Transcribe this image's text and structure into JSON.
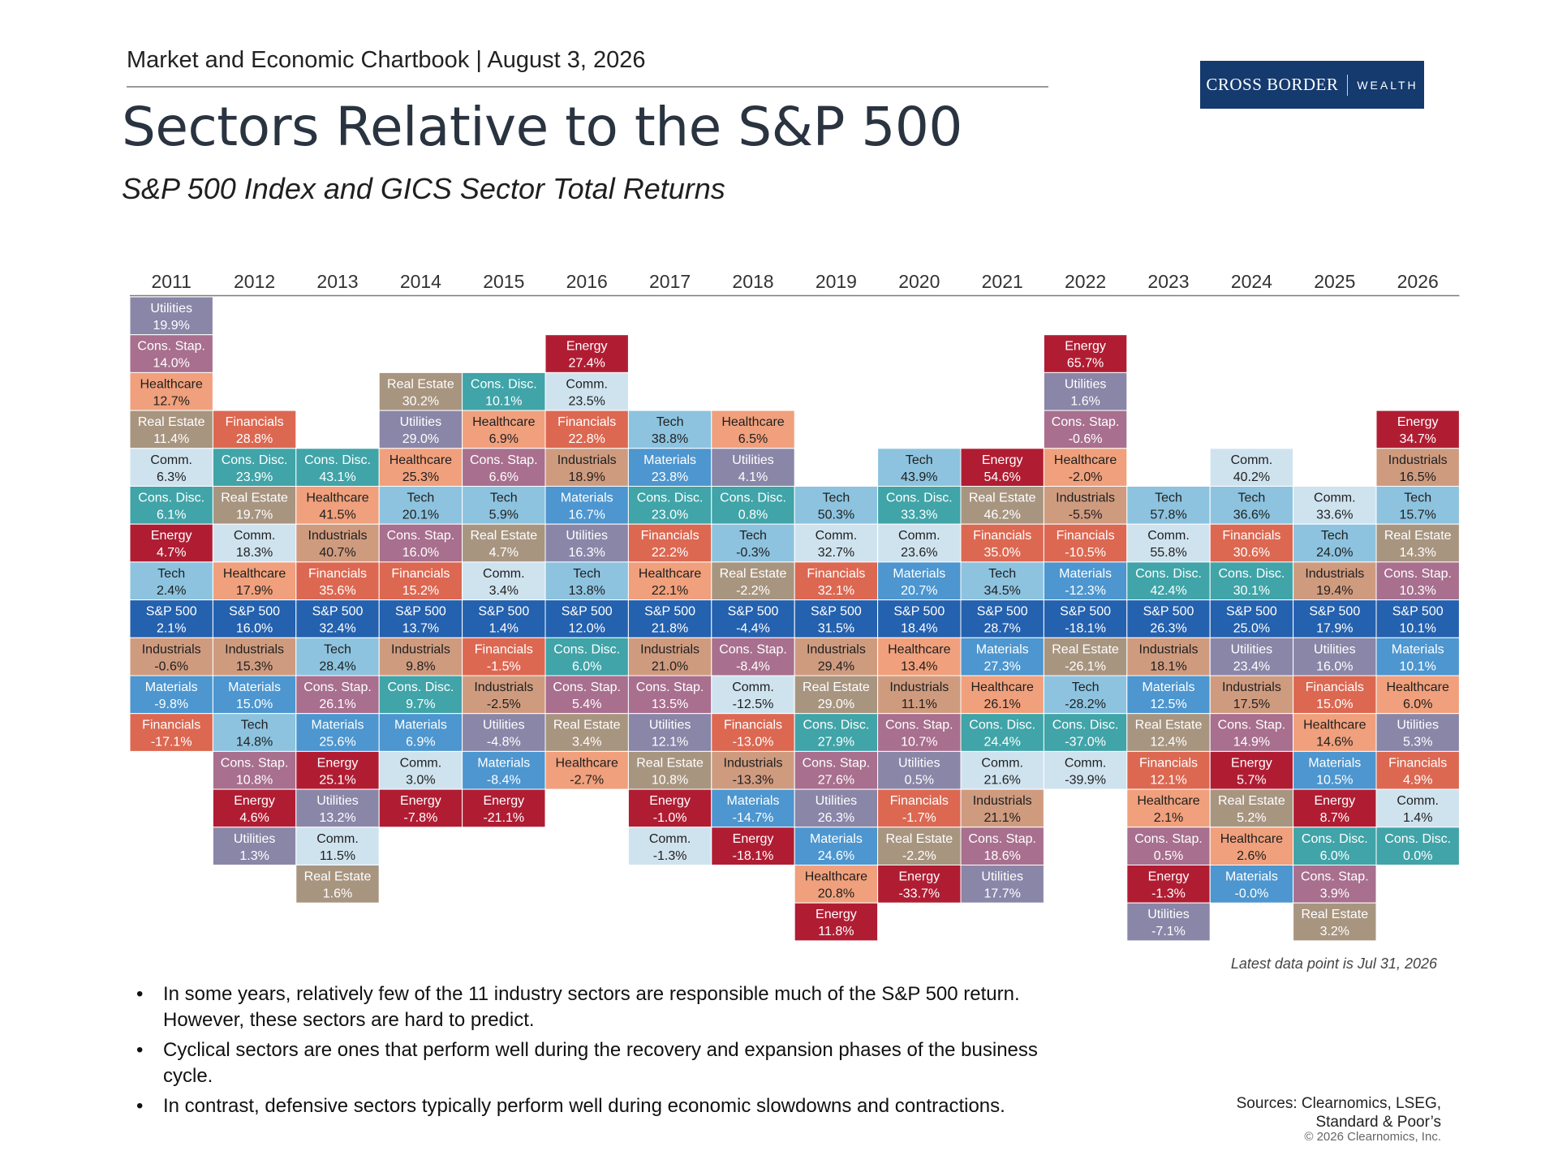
{
  "header": {
    "kicker": "Market and Economic Chartbook | August 3, 2026",
    "logo_primary": "CROSS BORDER",
    "logo_secondary": "WEALTH",
    "title": "Sectors Relative to the S&P 500",
    "subtitle": "S&P 500 Index and GICS Sector Total Returns"
  },
  "latest_note": "Latest data point is Jul 31, 2026",
  "bullets": [
    "In some years, relatively few of the 11 industry sectors are responsible much of the S&P 500 return. However, these sectors are hard to predict.",
    "Cyclical sectors are ones that perform well during the recovery and expansion phases of the business cycle.",
    "In contrast, defensive sectors typically perform well during economic slowdowns and contractions."
  ],
  "bullet_glyph": "•",
  "sources": [
    "Sources: Clearnomics, LSEG,",
    "Standard & Poor’s"
  ],
  "copyright": "© 2026 Clearnomics, Inc.",
  "colors": {
    "S&P 500": "#2461ae",
    "Utilities": "#8a86a8",
    "Cons. Stap.": "#a86f8e",
    "Healthcare": "#f0a07c",
    "Real Estate": "#a89580",
    "Comm.": "#cfe3ef",
    "Cons. Disc.": "#40a4a8",
    "Energy": "#b01d33",
    "Tech": "#8dc3df",
    "Industrials": "#cf9b7f",
    "Materials": "#4d96cf",
    "Financials": "#dc6852"
  },
  "chart_data": {
    "type": "table",
    "title": "Sectors Relative to the S&P 500",
    "subtitle": "S&P 500 Index and GICS Sector Total Returns",
    "benchmark": "S&P 500",
    "unit": "%",
    "years": [
      {
        "year": "2011",
        "above": [
          [
            "Utilities",
            "19.9%"
          ],
          [
            "Cons. Stap.",
            "14.0%"
          ],
          [
            "Healthcare",
            "12.7%"
          ],
          [
            "Real Estate",
            "11.4%"
          ],
          [
            "Comm.",
            "6.3%"
          ],
          [
            "Cons. Disc.",
            "6.1%"
          ],
          [
            "Energy",
            "4.7%"
          ],
          [
            "Tech",
            "2.4%"
          ]
        ],
        "index": "2.1%",
        "below": [
          [
            "Industrials",
            "-0.6%"
          ],
          [
            "Materials",
            "-9.8%"
          ],
          [
            "Financials",
            "-17.1%"
          ]
        ]
      },
      {
        "year": "2012",
        "above": [
          [
            "Financials",
            "28.8%"
          ],
          [
            "Cons. Disc.",
            "23.9%"
          ],
          [
            "Real Estate",
            "19.7%"
          ],
          [
            "Comm.",
            "18.3%"
          ],
          [
            "Healthcare",
            "17.9%"
          ]
        ],
        "index": "16.0%",
        "below": [
          [
            "Industrials",
            "15.3%"
          ],
          [
            "Materials",
            "15.0%"
          ],
          [
            "Tech",
            "14.8%"
          ],
          [
            "Cons. Stap.",
            "10.8%"
          ],
          [
            "Energy",
            "4.6%"
          ],
          [
            "Utilities",
            "1.3%"
          ]
        ]
      },
      {
        "year": "2013",
        "above": [
          [
            "Cons. Disc.",
            "43.1%"
          ],
          [
            "Healthcare",
            "41.5%"
          ],
          [
            "Industrials",
            "40.7%"
          ],
          [
            "Financials",
            "35.6%"
          ]
        ],
        "index": "32.4%",
        "below": [
          [
            "Tech",
            "28.4%"
          ],
          [
            "Cons. Stap.",
            "26.1%"
          ],
          [
            "Materials",
            "25.6%"
          ],
          [
            "Energy",
            "25.1%"
          ],
          [
            "Utilities",
            "13.2%"
          ],
          [
            "Comm.",
            "11.5%"
          ],
          [
            "Real Estate",
            "1.6%"
          ]
        ]
      },
      {
        "year": "2014",
        "above": [
          [
            "Real Estate",
            "30.2%"
          ],
          [
            "Utilities",
            "29.0%"
          ],
          [
            "Healthcare",
            "25.3%"
          ],
          [
            "Tech",
            "20.1%"
          ],
          [
            "Cons. Stap.",
            "16.0%"
          ],
          [
            "Financials",
            "15.2%"
          ]
        ],
        "index": "13.7%",
        "below": [
          [
            "Industrials",
            "9.8%"
          ],
          [
            "Cons. Disc.",
            "9.7%"
          ],
          [
            "Materials",
            "6.9%"
          ],
          [
            "Comm.",
            "3.0%"
          ],
          [
            "Energy",
            "-7.8%"
          ]
        ]
      },
      {
        "year": "2015",
        "above": [
          [
            "Cons. Disc.",
            "10.1%"
          ],
          [
            "Healthcare",
            "6.9%"
          ],
          [
            "Cons. Stap.",
            "6.6%"
          ],
          [
            "Tech",
            "5.9%"
          ],
          [
            "Real Estate",
            "4.7%"
          ],
          [
            "Comm.",
            "3.4%"
          ]
        ],
        "index": "1.4%",
        "below": [
          [
            "Financials",
            "-1.5%"
          ],
          [
            "Industrials",
            "-2.5%"
          ],
          [
            "Utilities",
            "-4.8%"
          ],
          [
            "Materials",
            "-8.4%"
          ],
          [
            "Energy",
            "-21.1%"
          ]
        ]
      },
      {
        "year": "2016",
        "above": [
          [
            "Energy",
            "27.4%"
          ],
          [
            "Comm.",
            "23.5%"
          ],
          [
            "Financials",
            "22.8%"
          ],
          [
            "Industrials",
            "18.9%"
          ],
          [
            "Materials",
            "16.7%"
          ],
          [
            "Utilities",
            "16.3%"
          ],
          [
            "Tech",
            "13.8%"
          ]
        ],
        "index": "12.0%",
        "below": [
          [
            "Cons. Disc.",
            "6.0%"
          ],
          [
            "Cons. Stap.",
            "5.4%"
          ],
          [
            "Real Estate",
            "3.4%"
          ],
          [
            "Healthcare",
            "-2.7%"
          ]
        ]
      },
      {
        "year": "2017",
        "above": [
          [
            "Tech",
            "38.8%"
          ],
          [
            "Materials",
            "23.8%"
          ],
          [
            "Cons. Disc.",
            "23.0%"
          ],
          [
            "Financials",
            "22.2%"
          ],
          [
            "Healthcare",
            "22.1%"
          ]
        ],
        "index": "21.8%",
        "below": [
          [
            "Industrials",
            "21.0%"
          ],
          [
            "Cons. Stap.",
            "13.5%"
          ],
          [
            "Utilities",
            "12.1%"
          ],
          [
            "Real Estate",
            "10.8%"
          ],
          [
            "Energy",
            "-1.0%"
          ],
          [
            "Comm.",
            "-1.3%"
          ]
        ]
      },
      {
        "year": "2018",
        "above": [
          [
            "Healthcare",
            "6.5%"
          ],
          [
            "Utilities",
            "4.1%"
          ],
          [
            "Cons. Disc.",
            "0.8%"
          ],
          [
            "Tech",
            "-0.3%"
          ],
          [
            "Real Estate",
            "-2.2%"
          ]
        ],
        "index": "-4.4%",
        "below": [
          [
            "Cons. Stap.",
            "-8.4%"
          ],
          [
            "Comm.",
            "-12.5%"
          ],
          [
            "Financials",
            "-13.0%"
          ],
          [
            "Industrials",
            "-13.3%"
          ],
          [
            "Materials",
            "-14.7%"
          ],
          [
            "Energy",
            "-18.1%"
          ]
        ]
      },
      {
        "year": "2019",
        "above": [
          [
            "Tech",
            "50.3%"
          ],
          [
            "Comm.",
            "32.7%"
          ],
          [
            "Financials",
            "32.1%"
          ]
        ],
        "index": "31.5%",
        "below": [
          [
            "Industrials",
            "29.4%"
          ],
          [
            "Real Estate",
            "29.0%"
          ],
          [
            "Cons. Disc.",
            "27.9%"
          ],
          [
            "Cons. Stap.",
            "27.6%"
          ],
          [
            "Utilities",
            "26.3%"
          ],
          [
            "Materials",
            "24.6%"
          ],
          [
            "Healthcare",
            "20.8%"
          ],
          [
            "Energy",
            "11.8%"
          ]
        ]
      },
      {
        "year": "2020",
        "above": [
          [
            "Tech",
            "43.9%"
          ],
          [
            "Cons. Disc.",
            "33.3%"
          ],
          [
            "Comm.",
            "23.6%"
          ],
          [
            "Materials",
            "20.7%"
          ]
        ],
        "index": "18.4%",
        "below": [
          [
            "Healthcare",
            "13.4%"
          ],
          [
            "Industrials",
            "11.1%"
          ],
          [
            "Cons. Stap.",
            "10.7%"
          ],
          [
            "Utilities",
            "0.5%"
          ],
          [
            "Financials",
            "-1.7%"
          ],
          [
            "Real Estate",
            "-2.2%"
          ],
          [
            "Energy",
            "-33.7%"
          ]
        ]
      },
      {
        "year": "2021",
        "above": [
          [
            "Energy",
            "54.6%"
          ],
          [
            "Real Estate",
            "46.2%"
          ],
          [
            "Financials",
            "35.0%"
          ],
          [
            "Tech",
            "34.5%"
          ]
        ],
        "index": "28.7%",
        "below": [
          [
            "Materials",
            "27.3%"
          ],
          [
            "Healthcare",
            "26.1%"
          ],
          [
            "Cons. Disc.",
            "24.4%"
          ],
          [
            "Comm.",
            "21.6%"
          ],
          [
            "Industrials",
            "21.1%"
          ],
          [
            "Cons. Stap.",
            "18.6%"
          ],
          [
            "Utilities",
            "17.7%"
          ]
        ]
      },
      {
        "year": "2022",
        "above": [
          [
            "Energy",
            "65.7%"
          ],
          [
            "Utilities",
            "1.6%"
          ],
          [
            "Cons. Stap.",
            "-0.6%"
          ],
          [
            "Healthcare",
            "-2.0%"
          ],
          [
            "Industrials",
            "-5.5%"
          ],
          [
            "Financials",
            "-10.5%"
          ],
          [
            "Materials",
            "-12.3%"
          ]
        ],
        "index": "-18.1%",
        "below": [
          [
            "Real Estate",
            "-26.1%"
          ],
          [
            "Tech",
            "-28.2%"
          ],
          [
            "Cons. Disc.",
            "-37.0%"
          ],
          [
            "Comm.",
            "-39.9%"
          ]
        ]
      },
      {
        "year": "2023",
        "above": [
          [
            "Tech",
            "57.8%"
          ],
          [
            "Comm.",
            "55.8%"
          ],
          [
            "Cons. Disc.",
            "42.4%"
          ]
        ],
        "index": "26.3%",
        "below": [
          [
            "Industrials",
            "18.1%"
          ],
          [
            "Materials",
            "12.5%"
          ],
          [
            "Real Estate",
            "12.4%"
          ],
          [
            "Financials",
            "12.1%"
          ],
          [
            "Healthcare",
            "2.1%"
          ],
          [
            "Cons. Stap.",
            "0.5%"
          ],
          [
            "Energy",
            "-1.3%"
          ],
          [
            "Utilities",
            "-7.1%"
          ]
        ]
      },
      {
        "year": "2024",
        "above": [
          [
            "Comm.",
            "40.2%"
          ],
          [
            "Tech",
            "36.6%"
          ],
          [
            "Financials",
            "30.6%"
          ],
          [
            "Cons. Disc.",
            "30.1%"
          ]
        ],
        "index": "25.0%",
        "below": [
          [
            "Utilities",
            "23.4%"
          ],
          [
            "Industrials",
            "17.5%"
          ],
          [
            "Cons. Stap.",
            "14.9%"
          ],
          [
            "Energy",
            "5.7%"
          ],
          [
            "Real Estate",
            "5.2%"
          ],
          [
            "Healthcare",
            "2.6%"
          ],
          [
            "Materials",
            "-0.0%"
          ]
        ]
      },
      {
        "year": "2025",
        "above": [
          [
            "Comm.",
            "33.6%"
          ],
          [
            "Tech",
            "24.0%"
          ],
          [
            "Industrials",
            "19.4%"
          ]
        ],
        "index": "17.9%",
        "below": [
          [
            "Utilities",
            "16.0%"
          ],
          [
            "Financials",
            "15.0%"
          ],
          [
            "Healthcare",
            "14.6%"
          ],
          [
            "Materials",
            "10.5%"
          ],
          [
            "Energy",
            "8.7%"
          ],
          [
            "Cons. Disc.",
            "6.0%"
          ],
          [
            "Cons. Stap.",
            "3.9%"
          ],
          [
            "Real Estate",
            "3.2%"
          ]
        ]
      },
      {
        "year": "2026",
        "above": [
          [
            "Energy",
            "34.7%"
          ],
          [
            "Industrials",
            "16.5%"
          ],
          [
            "Tech",
            "15.7%"
          ],
          [
            "Real Estate",
            "14.3%"
          ],
          [
            "Cons. Stap.",
            "10.3%"
          ]
        ],
        "index": "10.1%",
        "below": [
          [
            "Materials",
            "10.1%"
          ],
          [
            "Healthcare",
            "6.0%"
          ],
          [
            "Utilities",
            "5.3%"
          ],
          [
            "Financials",
            "4.9%"
          ],
          [
            "Comm.",
            "1.4%"
          ],
          [
            "Cons. Disc.",
            "0.0%"
          ]
        ]
      }
    ]
  }
}
